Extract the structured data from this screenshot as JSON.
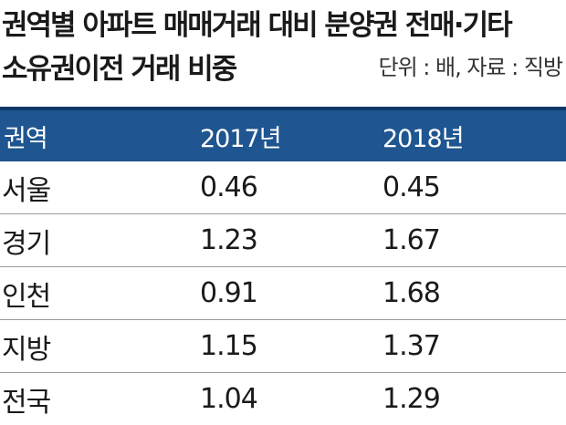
{
  "title": {
    "line1": "권역별 아파트 매매거래 대비 분양권 전매·기타",
    "line2": "소유권이전 거래 비중",
    "unit_note": "단위 : 배, 자료 : 직방"
  },
  "table": {
    "headers": [
      "권역",
      "2017년",
      "2018년"
    ],
    "rows": [
      {
        "region": "서울",
        "y2017": "0.46",
        "y2018": "0.45"
      },
      {
        "region": "경기",
        "y2017": "1.23",
        "y2018": "1.67"
      },
      {
        "region": "인천",
        "y2017": "0.91",
        "y2018": "1.68"
      },
      {
        "region": "지방",
        "y2017": "1.15",
        "y2018": "1.37"
      },
      {
        "region": "전국",
        "y2017": "1.04",
        "y2018": "1.29"
      }
    ]
  },
  "colors": {
    "header_bg": "#1f5590",
    "header_border": "#0e3866",
    "header_text": "#ffffff",
    "row_divider": "#9a9a9a"
  }
}
